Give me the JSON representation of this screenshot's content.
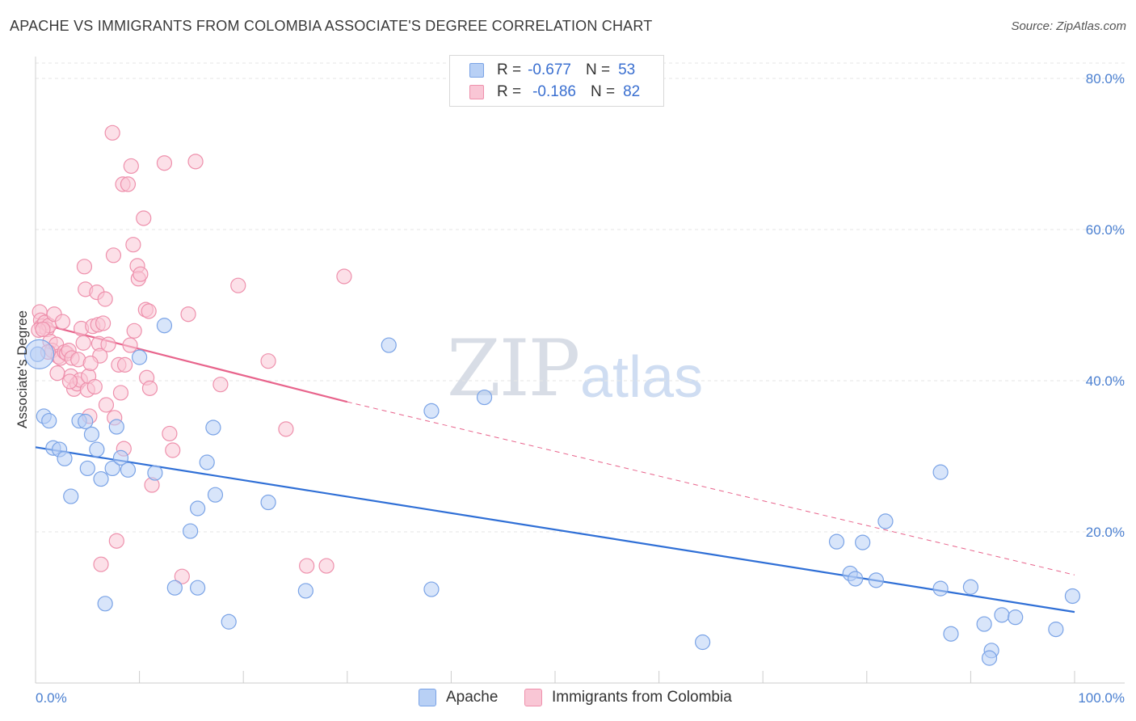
{
  "header": {
    "title": "APACHE VS IMMIGRANTS FROM COLOMBIA ASSOCIATE'S DEGREE CORRELATION CHART",
    "source": "Source: ZipAtlas.com"
  },
  "watermark": {
    "part1": "ZIP",
    "part2": "atlas"
  },
  "legend": {
    "r_label": "R =",
    "n_label": "N =",
    "series": [
      {
        "name": "Apache",
        "r": "-0.677",
        "n": "53",
        "fill": "#b8d0f5",
        "stroke": "#7aa3e6"
      },
      {
        "name": "Immigrants from Colombia",
        "r": "-0.186",
        "n": "82",
        "fill": "#f9c6d5",
        "stroke": "#ee90ac"
      }
    ]
  },
  "chart_data": {
    "type": "scatter",
    "title": "APACHE VS IMMIGRANTS FROM COLOMBIA ASSOCIATE'S DEGREE CORRELATION CHART",
    "xlabel": "",
    "ylabel": "Associate's Degree",
    "xlim": [
      0,
      100
    ],
    "ylim": [
      0,
      80
    ],
    "x_tick_labels": [
      "0.0%",
      "100.0%"
    ],
    "y_ticks": [
      20,
      40,
      60,
      80
    ],
    "y_tick_labels": [
      "20.0%",
      "40.0%",
      "60.0%",
      "80.0%"
    ],
    "grid": true,
    "series": [
      {
        "name": "Apache",
        "color": "#7aa3e6",
        "fill": "#b8d0f5",
        "trend": {
          "x": [
            0,
            100
          ],
          "y": [
            31.2,
            9.4
          ],
          "color": "#2f6fd6"
        },
        "points": [
          [
            0.2,
            43.5
          ],
          [
            0.8,
            35.3
          ],
          [
            1.3,
            34.7
          ],
          [
            1.7,
            31.1
          ],
          [
            2.3,
            30.9
          ],
          [
            2.8,
            29.7
          ],
          [
            3.4,
            24.7
          ],
          [
            4.2,
            34.7
          ],
          [
            4.8,
            34.6
          ],
          [
            5.0,
            28.4
          ],
          [
            5.4,
            32.9
          ],
          [
            5.9,
            30.9
          ],
          [
            6.3,
            27.0
          ],
          [
            6.7,
            10.5
          ],
          [
            7.4,
            28.4
          ],
          [
            7.8,
            33.9
          ],
          [
            8.2,
            29.8
          ],
          [
            8.9,
            28.2
          ],
          [
            10.0,
            43.1
          ],
          [
            11.5,
            27.8
          ],
          [
            12.4,
            47.3
          ],
          [
            13.4,
            12.6
          ],
          [
            14.9,
            20.1
          ],
          [
            15.6,
            23.1
          ],
          [
            15.6,
            12.6
          ],
          [
            16.5,
            29.2
          ],
          [
            17.1,
            33.8
          ],
          [
            17.3,
            24.9
          ],
          [
            18.6,
            8.1
          ],
          [
            22.4,
            23.9
          ],
          [
            26.0,
            12.2
          ],
          [
            34.0,
            44.7
          ],
          [
            38.1,
            36.0
          ],
          [
            38.1,
            12.4
          ],
          [
            43.2,
            37.8
          ],
          [
            64.2,
            5.4
          ],
          [
            77.1,
            18.7
          ],
          [
            78.4,
            14.5
          ],
          [
            78.9,
            13.8
          ],
          [
            79.6,
            18.6
          ],
          [
            80.9,
            13.6
          ],
          [
            81.8,
            21.4
          ],
          [
            87.1,
            27.9
          ],
          [
            87.1,
            12.5
          ],
          [
            88.1,
            6.5
          ],
          [
            90.0,
            12.7
          ],
          [
            91.3,
            7.8
          ],
          [
            92.0,
            4.3
          ],
          [
            91.8,
            3.3
          ],
          [
            93.0,
            9.0
          ],
          [
            94.3,
            8.7
          ],
          [
            98.2,
            7.1
          ],
          [
            99.8,
            11.5
          ]
        ]
      },
      {
        "name": "Immigrants from Colombia",
        "color": "#ee90ac",
        "fill": "#f9c6d5",
        "trend": {
          "x": [
            0,
            30
          ],
          "y": [
            47.7,
            37.2
          ],
          "dash_x": [
            30,
            100
          ],
          "dash_y": [
            37.2,
            14.3
          ],
          "color": "#e8648c"
        },
        "points": [
          [
            0.4,
            49.1
          ],
          [
            0.5,
            48.0
          ],
          [
            0.6,
            47.2
          ],
          [
            0.9,
            47.7
          ],
          [
            1.1,
            46.8
          ],
          [
            1.3,
            47.3
          ],
          [
            1.4,
            45.2
          ],
          [
            1.6,
            44.0
          ],
          [
            1.8,
            48.8
          ],
          [
            2.0,
            44.8
          ],
          [
            2.2,
            43.2
          ],
          [
            2.4,
            43.0
          ],
          [
            2.6,
            47.8
          ],
          [
            2.8,
            43.8
          ],
          [
            3.0,
            43.6
          ],
          [
            3.2,
            44.0
          ],
          [
            3.4,
            40.6
          ],
          [
            3.5,
            43.0
          ],
          [
            3.7,
            38.9
          ],
          [
            4.0,
            39.6
          ],
          [
            4.1,
            42.8
          ],
          [
            4.3,
            40.1
          ],
          [
            4.4,
            46.9
          ],
          [
            4.6,
            45.0
          ],
          [
            4.7,
            55.1
          ],
          [
            4.8,
            52.1
          ],
          [
            5.0,
            38.8
          ],
          [
            5.1,
            40.6
          ],
          [
            5.2,
            35.3
          ],
          [
            5.5,
            47.2
          ],
          [
            5.7,
            39.2
          ],
          [
            5.9,
            51.7
          ],
          [
            6.0,
            47.4
          ],
          [
            6.1,
            44.9
          ],
          [
            6.2,
            43.3
          ],
          [
            6.3,
            15.7
          ],
          [
            6.5,
            47.6
          ],
          [
            6.7,
            50.8
          ],
          [
            7.0,
            44.8
          ],
          [
            7.4,
            72.8
          ],
          [
            7.5,
            56.6
          ],
          [
            7.6,
            35.1
          ],
          [
            7.8,
            18.8
          ],
          [
            8.0,
            42.1
          ],
          [
            8.2,
            38.4
          ],
          [
            8.4,
            66.0
          ],
          [
            8.5,
            31.0
          ],
          [
            8.6,
            42.1
          ],
          [
            8.9,
            66.0
          ],
          [
            9.1,
            44.7
          ],
          [
            9.2,
            68.4
          ],
          [
            9.4,
            58.0
          ],
          [
            9.5,
            46.6
          ],
          [
            9.8,
            55.2
          ],
          [
            9.9,
            53.5
          ],
          [
            10.1,
            54.1
          ],
          [
            10.4,
            61.5
          ],
          [
            10.6,
            49.4
          ],
          [
            10.7,
            40.4
          ],
          [
            10.9,
            49.2
          ],
          [
            11.0,
            39.0
          ],
          [
            11.2,
            26.2
          ],
          [
            12.4,
            68.8
          ],
          [
            12.9,
            33.0
          ],
          [
            13.2,
            30.8
          ],
          [
            14.1,
            14.1
          ],
          [
            14.7,
            48.8
          ],
          [
            15.4,
            69.0
          ],
          [
            17.8,
            39.5
          ],
          [
            19.5,
            52.6
          ],
          [
            22.4,
            42.6
          ],
          [
            24.1,
            33.6
          ],
          [
            26.1,
            15.5
          ],
          [
            28.0,
            15.5
          ],
          [
            29.7,
            53.8
          ],
          [
            0.3,
            46.7
          ],
          [
            0.7,
            46.8
          ],
          [
            1.2,
            43.8
          ],
          [
            2.1,
            41.0
          ],
          [
            3.3,
            39.9
          ],
          [
            5.3,
            42.3
          ],
          [
            6.8,
            36.8
          ]
        ]
      }
    ]
  }
}
